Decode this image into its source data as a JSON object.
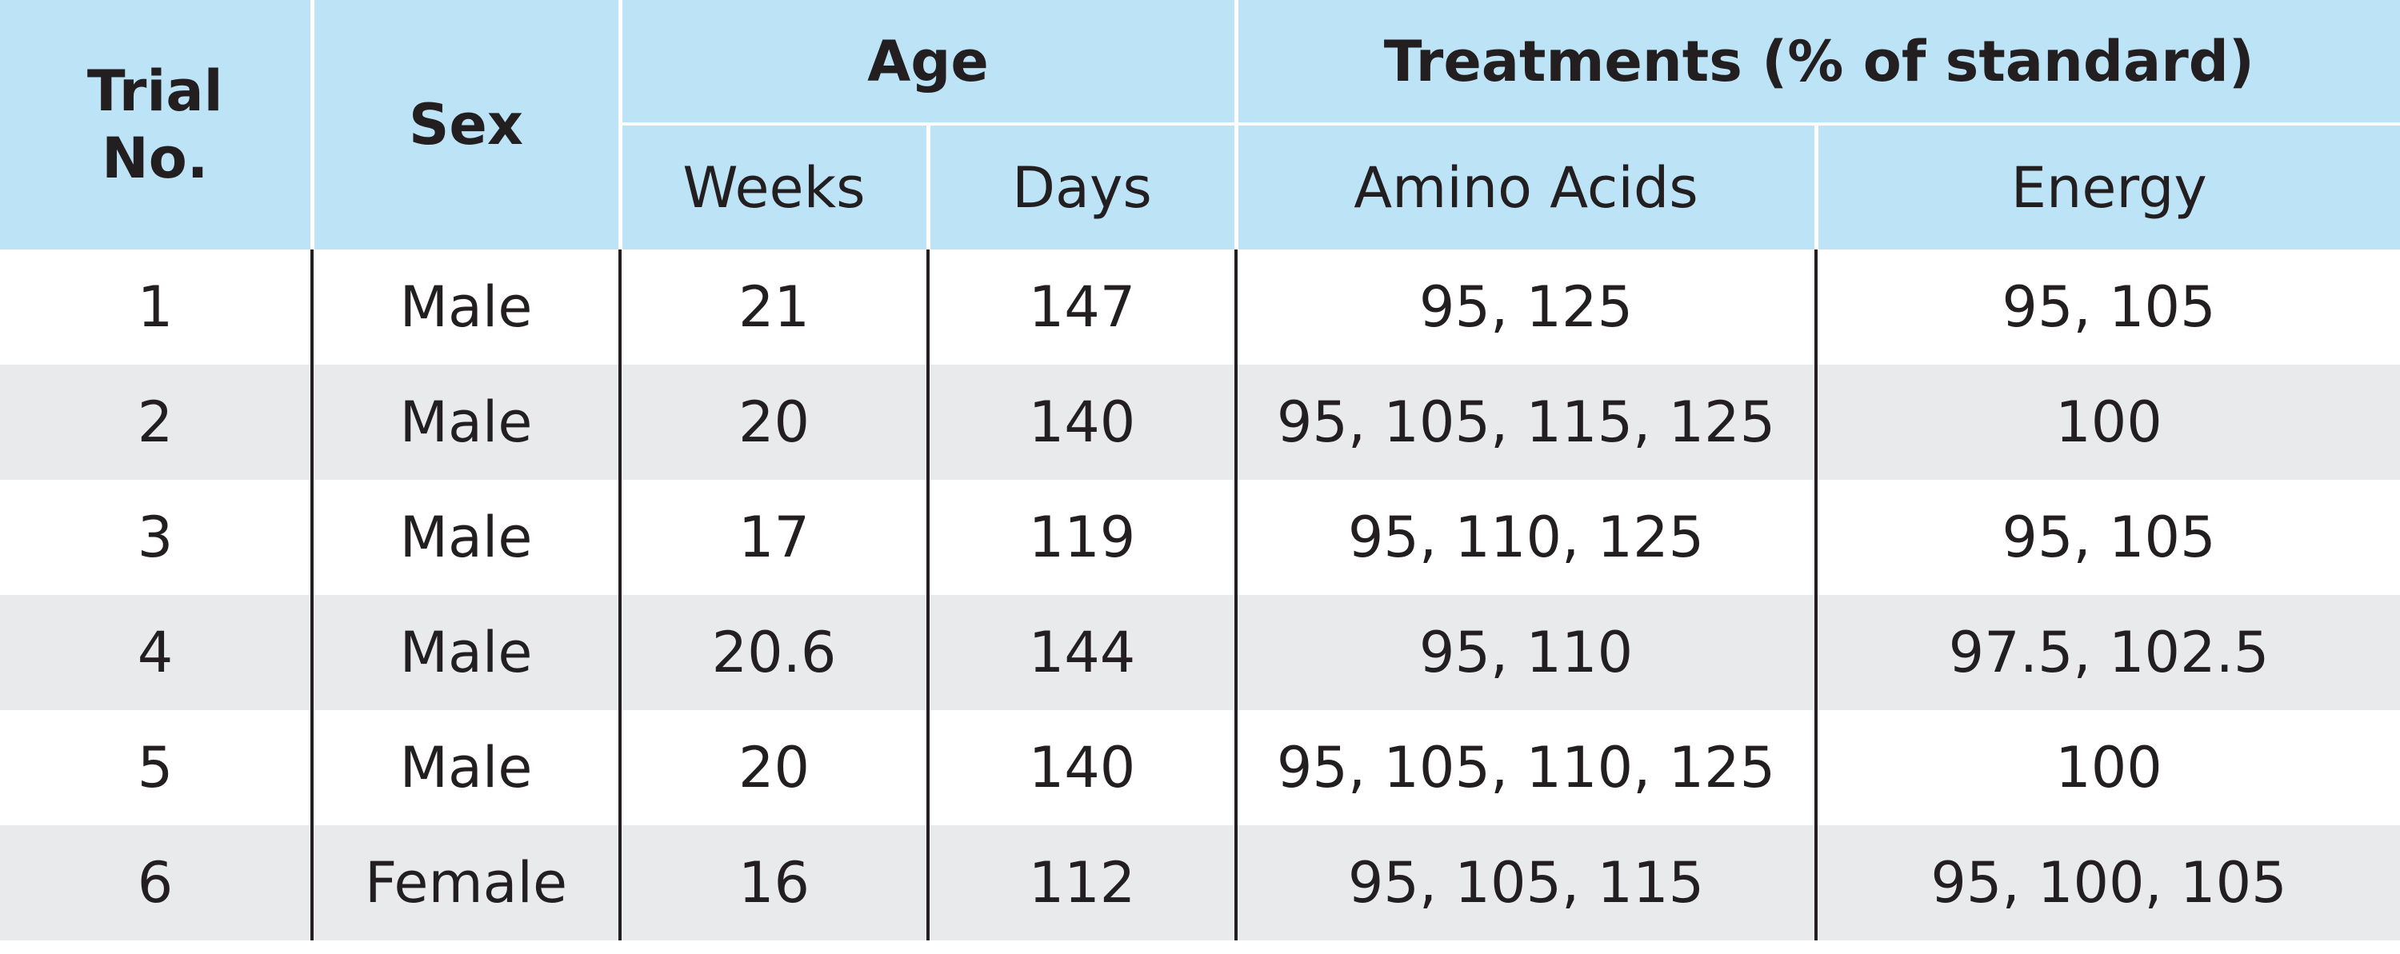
{
  "header": {
    "trial_no": "Trial No.",
    "sex": "Sex",
    "age": "Age",
    "treatments": "Treatments (% of standard)",
    "weeks": "Weeks",
    "days": "Days",
    "amino_acids": "Amino Acids",
    "energy": "Energy"
  },
  "rows": [
    {
      "trial": "1",
      "sex": "Male",
      "weeks": "21",
      "days": "147",
      "amino": "95, 125",
      "energy": "95, 105"
    },
    {
      "trial": "2",
      "sex": "Male",
      "weeks": "20",
      "days": "140",
      "amino": "95, 105, 115, 125",
      "energy": "100"
    },
    {
      "trial": "3",
      "sex": "Male",
      "weeks": "17",
      "days": "119",
      "amino": "95, 110, 125",
      "energy": "95, 105"
    },
    {
      "trial": "4",
      "sex": "Male",
      "weeks": "20.6",
      "days": "144",
      "amino": "95, 110",
      "energy": "97.5, 102.5"
    },
    {
      "trial": "5",
      "sex": "Male",
      "weeks": "20",
      "days": "140",
      "amino": "95, 105, 110, 125",
      "energy": "100"
    },
    {
      "trial": "6",
      "sex": "Female",
      "weeks": "16",
      "days": "112",
      "amino": "95, 105, 115",
      "energy": "95, 100, 105"
    }
  ]
}
